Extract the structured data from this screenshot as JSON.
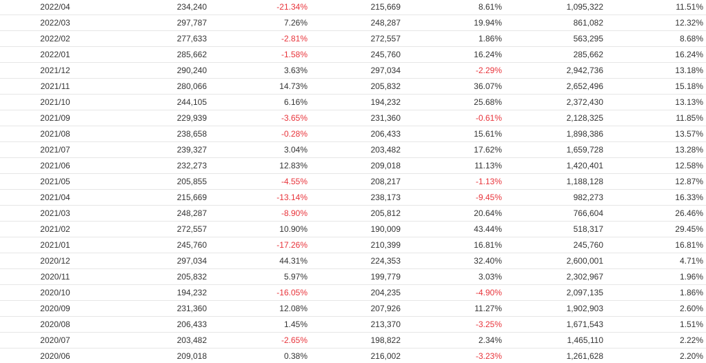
{
  "colors": {
    "text": "#333333",
    "negative": "#e8333a",
    "row_border": "#e6e6e6"
  },
  "table": {
    "rows": [
      {
        "month": "2022/04",
        "v1": "234,240",
        "p1": "-21.34%",
        "v2": "215,669",
        "p2": "8.61%",
        "v3": "1,095,322",
        "p3": "11.51%"
      },
      {
        "month": "2022/03",
        "v1": "297,787",
        "p1": "7.26%",
        "v2": "248,287",
        "p2": "19.94%",
        "v3": "861,082",
        "p3": "12.32%"
      },
      {
        "month": "2022/02",
        "v1": "277,633",
        "p1": "-2.81%",
        "v2": "272,557",
        "p2": "1.86%",
        "v3": "563,295",
        "p3": "8.68%"
      },
      {
        "month": "2022/01",
        "v1": "285,662",
        "p1": "-1.58%",
        "v2": "245,760",
        "p2": "16.24%",
        "v3": "285,662",
        "p3": "16.24%"
      },
      {
        "month": "2021/12",
        "v1": "290,240",
        "p1": "3.63%",
        "v2": "297,034",
        "p2": "-2.29%",
        "v3": "2,942,736",
        "p3": "13.18%"
      },
      {
        "month": "2021/11",
        "v1": "280,066",
        "p1": "14.73%",
        "v2": "205,832",
        "p2": "36.07%",
        "v3": "2,652,496",
        "p3": "15.18%"
      },
      {
        "month": "2021/10",
        "v1": "244,105",
        "p1": "6.16%",
        "v2": "194,232",
        "p2": "25.68%",
        "v3": "2,372,430",
        "p3": "13.13%"
      },
      {
        "month": "2021/09",
        "v1": "229,939",
        "p1": "-3.65%",
        "v2": "231,360",
        "p2": "-0.61%",
        "v3": "2,128,325",
        "p3": "11.85%"
      },
      {
        "month": "2021/08",
        "v1": "238,658",
        "p1": "-0.28%",
        "v2": "206,433",
        "p2": "15.61%",
        "v3": "1,898,386",
        "p3": "13.57%"
      },
      {
        "month": "2021/07",
        "v1": "239,327",
        "p1": "3.04%",
        "v2": "203,482",
        "p2": "17.62%",
        "v3": "1,659,728",
        "p3": "13.28%"
      },
      {
        "month": "2021/06",
        "v1": "232,273",
        "p1": "12.83%",
        "v2": "209,018",
        "p2": "11.13%",
        "v3": "1,420,401",
        "p3": "12.58%"
      },
      {
        "month": "2021/05",
        "v1": "205,855",
        "p1": "-4.55%",
        "v2": "208,217",
        "p2": "-1.13%",
        "v3": "1,188,128",
        "p3": "12.87%"
      },
      {
        "month": "2021/04",
        "v1": "215,669",
        "p1": "-13.14%",
        "v2": "238,173",
        "p2": "-9.45%",
        "v3": "982,273",
        "p3": "16.33%"
      },
      {
        "month": "2021/03",
        "v1": "248,287",
        "p1": "-8.90%",
        "v2": "205,812",
        "p2": "20.64%",
        "v3": "766,604",
        "p3": "26.46%"
      },
      {
        "month": "2021/02",
        "v1": "272,557",
        "p1": "10.90%",
        "v2": "190,009",
        "p2": "43.44%",
        "v3": "518,317",
        "p3": "29.45%"
      },
      {
        "month": "2021/01",
        "v1": "245,760",
        "p1": "-17.26%",
        "v2": "210,399",
        "p2": "16.81%",
        "v3": "245,760",
        "p3": "16.81%"
      },
      {
        "month": "2020/12",
        "v1": "297,034",
        "p1": "44.31%",
        "v2": "224,353",
        "p2": "32.40%",
        "v3": "2,600,001",
        "p3": "4.71%"
      },
      {
        "month": "2020/11",
        "v1": "205,832",
        "p1": "5.97%",
        "v2": "199,779",
        "p2": "3.03%",
        "v3": "2,302,967",
        "p3": "1.96%"
      },
      {
        "month": "2020/10",
        "v1": "194,232",
        "p1": "-16.05%",
        "v2": "204,235",
        "p2": "-4.90%",
        "v3": "2,097,135",
        "p3": "1.86%"
      },
      {
        "month": "2020/09",
        "v1": "231,360",
        "p1": "12.08%",
        "v2": "207,926",
        "p2": "11.27%",
        "v3": "1,902,903",
        "p3": "2.60%"
      },
      {
        "month": "2020/08",
        "v1": "206,433",
        "p1": "1.45%",
        "v2": "213,370",
        "p2": "-3.25%",
        "v3": "1,671,543",
        "p3": "1.51%"
      },
      {
        "month": "2020/07",
        "v1": "203,482",
        "p1": "-2.65%",
        "v2": "198,822",
        "p2": "2.34%",
        "v3": "1,465,110",
        "p3": "2.22%"
      },
      {
        "month": "2020/06",
        "v1": "209,018",
        "p1": "0.38%",
        "v2": "216,002",
        "p2": "-3.23%",
        "v3": "1,261,628",
        "p3": "2.20%"
      }
    ]
  }
}
